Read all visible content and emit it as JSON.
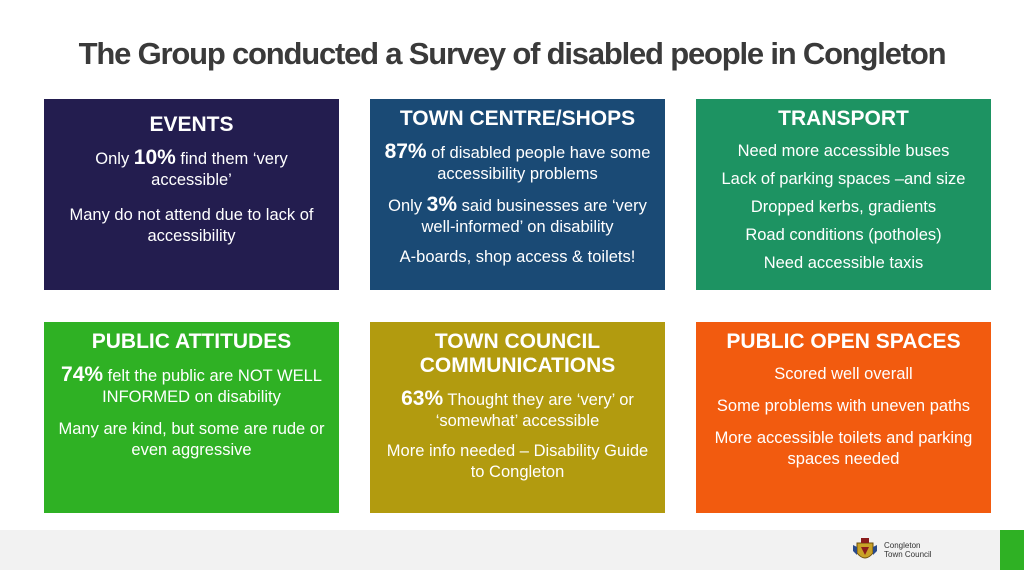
{
  "title": "The Group conducted a Survey of disabled people in Congleton",
  "boxes": {
    "events": {
      "heading": "EVENTS",
      "line1_pre": "Only ",
      "line1_big": "10%",
      "line1_post": " find them ‘very accessible’",
      "line2": "Many do not attend due to lack of accessibility"
    },
    "town_centre": {
      "heading": "TOWN CENTRE/SHOPS",
      "line1_big": "87%",
      "line1_post": " of disabled people have some accessibility problems",
      "line2_pre": "Only ",
      "line2_big": "3%",
      "line2_post": " said businesses are ‘very well-informed’ on disability",
      "line3": "A-boards, shop access & toilets!"
    },
    "transport": {
      "heading": "TRANSPORT",
      "items": [
        "Need more accessible buses",
        "Lack of parking spaces –and size",
        "Dropped kerbs, gradients",
        "Road conditions (potholes)",
        "Need accessible taxis"
      ]
    },
    "public_attitudes": {
      "heading": "PUBLIC ATTITUDES",
      "line1_big": "74%",
      "line1_post": " felt the public are NOT WELL INFORMED on disability",
      "line2": "Many are kind, but some are rude or even aggressive"
    },
    "town_council": {
      "heading": "TOWN COUNCIL COMMUNICATIONS",
      "line1_big": "63%",
      "line1_post": " Thought they are ‘very’ or ‘somewhat’ accessible",
      "line2": "More info needed – Disability Guide to Congleton"
    },
    "open_spaces": {
      "heading": "PUBLIC OPEN SPACES",
      "line1": "Scored well overall",
      "line2": "Some problems with uneven paths",
      "line3": "More accessible toilets and parking spaces needed"
    }
  },
  "logo": {
    "line1": "Congleton",
    "line2": "Town Council",
    "icon": "crest-icon"
  },
  "colors": {
    "events": "#231d4f",
    "town_centre": "#1a4a75",
    "transport": "#1d9362",
    "public_attitudes": "#2fb124",
    "town_council": "#b29b0f",
    "open_spaces": "#f25b0f"
  }
}
